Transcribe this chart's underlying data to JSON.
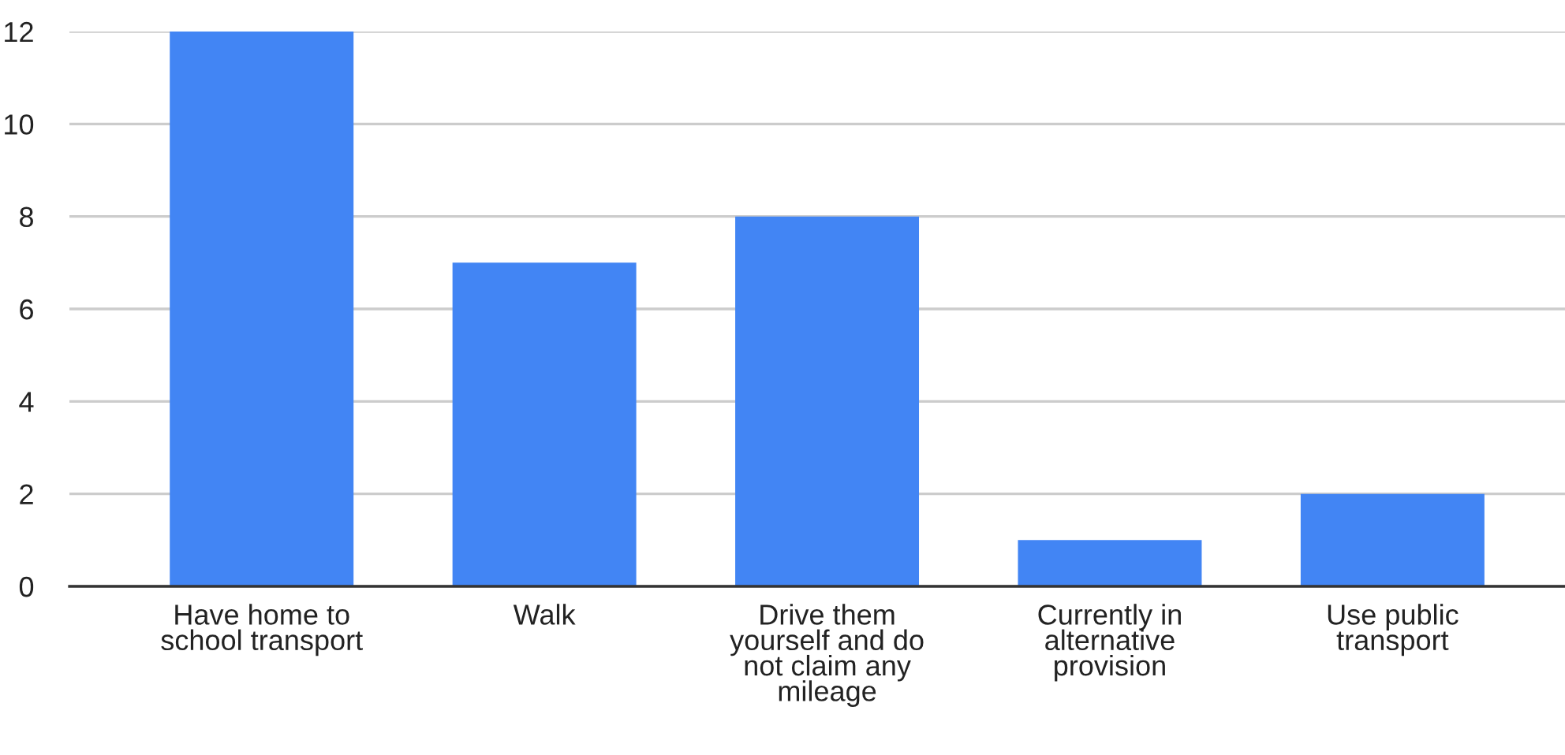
{
  "chart_data": {
    "type": "bar",
    "categories": [
      "Have home to\nschool transport",
      "Walk",
      "Drive them\nyourself and do\nnot claim any\nmileage",
      "Currently in\nalternative\nprovision",
      "Use public\ntransport"
    ],
    "values": [
      12,
      7,
      8,
      1,
      2
    ],
    "color": "#4285f4",
    "ylim": [
      0,
      12
    ],
    "yticks": [
      0,
      2,
      4,
      6,
      8,
      10,
      12
    ],
    "grid": "y",
    "legend": false
  }
}
